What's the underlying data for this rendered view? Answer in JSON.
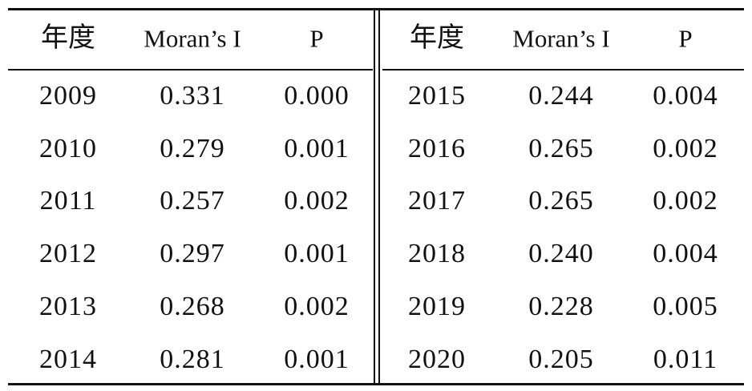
{
  "table": {
    "left": {
      "header": [
        "年度",
        "Moran’s I",
        "P"
      ],
      "rows": [
        [
          "2009",
          "0.331",
          "0.000"
        ],
        [
          "2010",
          "0.279",
          "0.001"
        ],
        [
          "2011",
          "0.257",
          "0.002"
        ],
        [
          "2012",
          "0.297",
          "0.001"
        ],
        [
          "2013",
          "0.268",
          "0.002"
        ],
        [
          "2014",
          "0.281",
          "0.001"
        ]
      ]
    },
    "right": {
      "header": [
        "年度",
        "Moran’s I",
        "P"
      ],
      "rows": [
        [
          "2015",
          "0.244",
          "0.004"
        ],
        [
          "2016",
          "0.265",
          "0.002"
        ],
        [
          "2017",
          "0.265",
          "0.002"
        ],
        [
          "2018",
          "0.240",
          "0.004"
        ],
        [
          "2019",
          "0.228",
          "0.005"
        ],
        [
          "2020",
          "0.205",
          "0.011"
        ]
      ]
    }
  }
}
